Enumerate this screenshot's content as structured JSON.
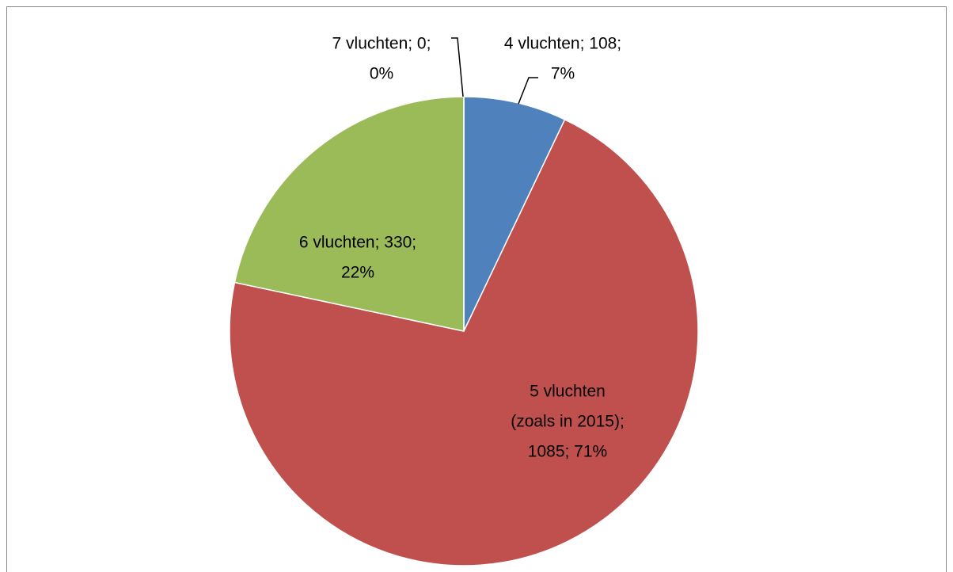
{
  "chart_data": {
    "type": "pie",
    "values": [
      108,
      1085,
      330,
      0
    ],
    "value_labels": [
      [
        "4 vluchten; 108;",
        "7%"
      ],
      [
        "5 vluchten",
        "(zoals in 2015);",
        "1085; 71%"
      ],
      [
        "6 vluchten; 330;",
        "22%"
      ],
      [
        "7 vluchten; 0;",
        "0%"
      ]
    ],
    "colors": [
      "#4f81bd",
      "#c0504d",
      "#9bbb59",
      "#8064a2"
    ]
  }
}
